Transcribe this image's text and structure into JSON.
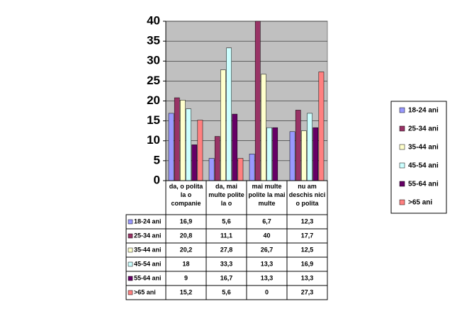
{
  "chart_data": {
    "type": "bar",
    "categories": [
      "da, o polita la o companie",
      "da, mai multe polite la o",
      "mai multe polite la mai multe",
      "nu am deschis nici o polita"
    ],
    "series": [
      {
        "name": "18-24 ani",
        "color": "#9999ff",
        "values": [
          16.9,
          5.6,
          6.7,
          12.3
        ],
        "value_labels": [
          "16,9",
          "5,6",
          "6,7",
          "12,3"
        ]
      },
      {
        "name": "25-34 ani",
        "color": "#993366",
        "values": [
          20.8,
          11.1,
          40,
          17.7
        ],
        "value_labels": [
          "20,8",
          "11,1",
          "40",
          "17,7"
        ]
      },
      {
        "name": "35-44 ani",
        "color": "#ffffcc",
        "values": [
          20.2,
          27.8,
          26.7,
          12.5
        ],
        "value_labels": [
          "20,2",
          "27,8",
          "26,7",
          "12,5"
        ]
      },
      {
        "name": "45-54 ani",
        "color": "#ccffff",
        "values": [
          18,
          33.3,
          13.3,
          16.9
        ],
        "value_labels": [
          "18",
          "33,3",
          "13,3",
          "16,9"
        ]
      },
      {
        "name": "55-64 ani",
        "color": "#660066",
        "values": [
          9,
          16.7,
          13.3,
          13.3
        ],
        "value_labels": [
          "9",
          "16,7",
          "13,3",
          "13,3"
        ]
      },
      {
        "name": ">65 ani",
        "color": "#ff8080",
        "values": [
          15.2,
          5.6,
          0,
          27.3
        ],
        "value_labels": [
          "15,2",
          "5,6",
          "0",
          "27,3"
        ]
      }
    ],
    "ylim": [
      0,
      40
    ],
    "yticks": [
      0,
      5,
      10,
      15,
      20,
      25,
      30,
      35,
      40
    ],
    "grid": true,
    "legend": "right"
  }
}
